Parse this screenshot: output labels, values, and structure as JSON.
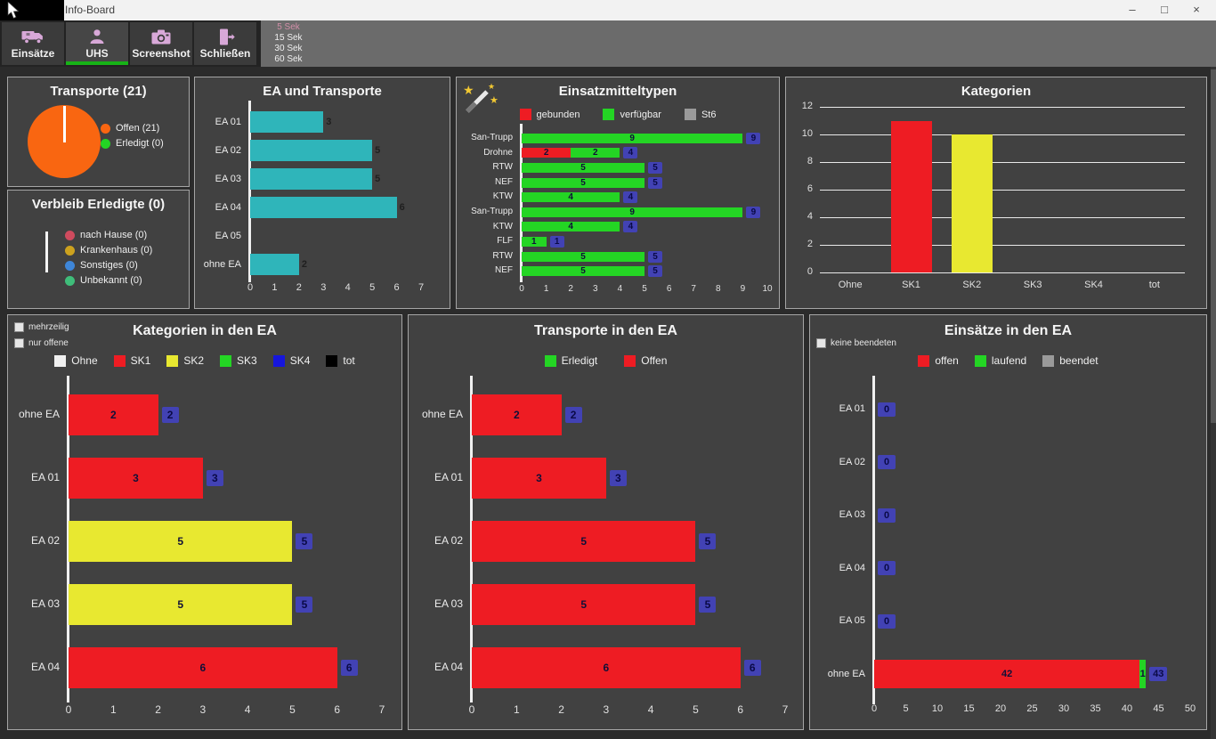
{
  "window": {
    "title": "Info-Board",
    "minimize_glyph": "–",
    "maximize_glyph": "□",
    "close_glyph": "×"
  },
  "toolbar": {
    "buttons": [
      {
        "id": "einsaetze",
        "label": "Einsätze",
        "icon": "ambulance-icon",
        "active": false
      },
      {
        "id": "uhs",
        "label": "UHS",
        "icon": "person-icon",
        "active": true
      },
      {
        "id": "screenshot",
        "label": "Screenshot",
        "icon": "camera-icon",
        "active": false
      },
      {
        "id": "schliessen",
        "label": "Schließen",
        "icon": "exit-door-icon",
        "active": false
      }
    ],
    "timer_options": [
      {
        "label": "5 Sek",
        "selected": true
      },
      {
        "label": "15 Sek",
        "selected": false
      },
      {
        "label": "30 Sek",
        "selected": false
      },
      {
        "label": "60 Sek",
        "selected": false
      }
    ]
  },
  "panels": {
    "transporte": {
      "title": "Transporte (21)",
      "pie": {
        "color": "#f96611",
        "line_color": "#ffffff",
        "value": 21
      },
      "legend": [
        {
          "label": "Offen (21)",
          "color": "#f96611"
        },
        {
          "label": "Erledigt (0)",
          "color": "#24d524"
        }
      ]
    },
    "verbleib": {
      "title": "Verbleib Erledigte (0)",
      "legend": [
        {
          "label": "nach Hause (0)",
          "color": "#cf4b5e"
        },
        {
          "label": "Krankenhaus (0)",
          "color": "#cda21e"
        },
        {
          "label": "Sonstiges (0)",
          "color": "#3e86d8"
        },
        {
          "label": "Unbekannt (0)",
          "color": "#3fbd7a"
        }
      ]
    },
    "kategorien_ea": {
      "checkboxes": [
        {
          "label": "mehrzeilig",
          "checked": false
        },
        {
          "label": "nur offene",
          "checked": false
        }
      ]
    },
    "einsaetze_ea": {
      "checkboxes": [
        {
          "label": "keine beendeten",
          "checked": false
        }
      ]
    }
  },
  "charts": {
    "ea_und_transporte": {
      "type": "bar-horizontal",
      "title": "EA und Transporte",
      "rows": [
        {
          "label": "EA 01",
          "segments": [
            {
              "color": "#2fb5ba",
              "value": 3
            }
          ]
        },
        {
          "label": "EA 02",
          "segments": [
            {
              "color": "#2fb5ba",
              "value": 5
            }
          ]
        },
        {
          "label": "EA 03",
          "segments": [
            {
              "color": "#2fb5ba",
              "value": 5
            }
          ]
        },
        {
          "label": "EA 04",
          "segments": [
            {
              "color": "#2fb5ba",
              "value": 6
            }
          ]
        },
        {
          "label": "EA 05",
          "segments": [
            {
              "color": "#2fb5ba",
              "value": 0
            }
          ]
        },
        {
          "label": "ohne EA",
          "segments": [
            {
              "color": "#2fb5ba",
              "value": 2
            }
          ]
        }
      ],
      "xlim": [
        0,
        7
      ],
      "xticks": [
        0,
        1,
        2,
        3,
        4,
        5,
        6,
        7
      ]
    },
    "einsatzmitteltypen": {
      "type": "bar-horizontal-stacked",
      "title": "Einsatzmitteltypen",
      "legend": [
        {
          "label": "gebunden",
          "color": "#ee1c23"
        },
        {
          "label": "verfügbar",
          "color": "#24d524"
        },
        {
          "label": "St6",
          "color": "#9a9a9a"
        }
      ],
      "rows": [
        {
          "label": "San-Trupp",
          "segments": [
            {
              "color": "#24d524",
              "value": 9
            }
          ],
          "total": 9
        },
        {
          "label": "Drohne",
          "segments": [
            {
              "color": "#ee1c23",
              "value": 2
            },
            {
              "color": "#24d524",
              "value": 2
            }
          ],
          "total": 4
        },
        {
          "label": "RTW",
          "segments": [
            {
              "color": "#24d524",
              "value": 5
            }
          ],
          "total": 5
        },
        {
          "label": "NEF",
          "segments": [
            {
              "color": "#24d524",
              "value": 5
            }
          ],
          "total": 5
        },
        {
          "label": "KTW",
          "segments": [
            {
              "color": "#24d524",
              "value": 4
            }
          ],
          "total": 4
        },
        {
          "label": "San-Trupp",
          "segments": [
            {
              "color": "#24d524",
              "value": 9
            }
          ],
          "total": 9
        },
        {
          "label": "KTW",
          "segments": [
            {
              "color": "#24d524",
              "value": 4
            }
          ],
          "total": 4
        },
        {
          "label": "FLF",
          "segments": [
            {
              "color": "#24d524",
              "value": 1
            }
          ],
          "total": 1
        },
        {
          "label": "RTW",
          "segments": [
            {
              "color": "#24d524",
              "value": 5
            }
          ],
          "total": 5
        },
        {
          "label": "NEF",
          "segments": [
            {
              "color": "#24d524",
              "value": 5
            }
          ],
          "total": 5
        }
      ],
      "xlim": [
        0,
        10
      ],
      "xticks": [
        0,
        1,
        2,
        3,
        4,
        5,
        6,
        7,
        8,
        9,
        10
      ]
    },
    "kategorien": {
      "type": "bar-vertical",
      "title": "Kategorien",
      "categories": [
        "Ohne",
        "SK1",
        "SK2",
        "SK3",
        "SK4",
        "tot"
      ],
      "values": [
        0,
        11,
        10,
        0,
        0,
        0
      ],
      "colors": [
        "#f0f0f0",
        "#ee1c23",
        "#e8e830",
        "#24d524",
        "#1616dc",
        "#000000"
      ],
      "ylim": [
        0,
        12
      ],
      "yticks": [
        0,
        2,
        4,
        6,
        8,
        10,
        12
      ]
    },
    "kategorien_in_den_ea": {
      "type": "bar-horizontal",
      "title": "Kategorien in den EA",
      "legend": [
        {
          "label": "Ohne",
          "color": "#f0f0f0"
        },
        {
          "label": "SK1",
          "color": "#ee1c23"
        },
        {
          "label": "SK2",
          "color": "#e8e830"
        },
        {
          "label": "SK3",
          "color": "#24d524"
        },
        {
          "label": "SK4",
          "color": "#1616dc"
        },
        {
          "label": "tot",
          "color": "#000000"
        }
      ],
      "rows": [
        {
          "label": "ohne EA",
          "segments": [
            {
              "color": "#ee1c23",
              "value": 2
            }
          ],
          "total": 2
        },
        {
          "label": "EA 01",
          "segments": [
            {
              "color": "#ee1c23",
              "value": 3
            }
          ],
          "total": 3
        },
        {
          "label": "EA 02",
          "segments": [
            {
              "color": "#e8e830",
              "value": 5
            }
          ],
          "total": 5
        },
        {
          "label": "EA 03",
          "segments": [
            {
              "color": "#e8e830",
              "value": 5
            }
          ],
          "total": 5
        },
        {
          "label": "EA 04",
          "segments": [
            {
              "color": "#ee1c23",
              "value": 6
            }
          ],
          "total": 6
        }
      ],
      "xlim": [
        0,
        7
      ],
      "xticks": [
        0,
        1,
        2,
        3,
        4,
        5,
        6,
        7
      ]
    },
    "transporte_in_den_ea": {
      "type": "bar-horizontal",
      "title": "Transporte in den EA",
      "legend": [
        {
          "label": "Erledigt",
          "color": "#24d524"
        },
        {
          "label": "Offen",
          "color": "#ee1c23"
        }
      ],
      "rows": [
        {
          "label": "ohne EA",
          "segments": [
            {
              "color": "#ee1c23",
              "value": 2
            }
          ],
          "total": 2
        },
        {
          "label": "EA 01",
          "segments": [
            {
              "color": "#ee1c23",
              "value": 3
            }
          ],
          "total": 3
        },
        {
          "label": "EA 02",
          "segments": [
            {
              "color": "#ee1c23",
              "value": 5
            }
          ],
          "total": 5
        },
        {
          "label": "EA 03",
          "segments": [
            {
              "color": "#ee1c23",
              "value": 5
            }
          ],
          "total": 5
        },
        {
          "label": "EA 04",
          "segments": [
            {
              "color": "#ee1c23",
              "value": 6
            }
          ],
          "total": 6
        }
      ],
      "xlim": [
        0,
        7
      ],
      "xticks": [
        0,
        1,
        2,
        3,
        4,
        5,
        6,
        7
      ]
    },
    "einsaetze_in_den_ea": {
      "type": "bar-horizontal-stacked",
      "title": "Einsätze in den EA",
      "legend": [
        {
          "label": "offen",
          "color": "#ee1c23"
        },
        {
          "label": "laufend",
          "color": "#24d524"
        },
        {
          "label": "beendet",
          "color": "#9a9a9a"
        }
      ],
      "rows": [
        {
          "label": "EA 01",
          "segments": [],
          "total": 0
        },
        {
          "label": "EA 02",
          "segments": [],
          "total": 0
        },
        {
          "label": "EA 03",
          "segments": [],
          "total": 0
        },
        {
          "label": "EA 04",
          "segments": [],
          "total": 0
        },
        {
          "label": "EA 05",
          "segments": [],
          "total": 0
        },
        {
          "label": "ohne EA",
          "segments": [
            {
              "color": "#ee1c23",
              "value": 42
            },
            {
              "color": "#24d524",
              "value": 1
            }
          ],
          "total": 43
        }
      ],
      "xlim": [
        0,
        50
      ],
      "xticks": [
        0,
        5,
        10,
        15,
        20,
        25,
        30,
        35,
        40,
        45,
        50
      ]
    }
  }
}
